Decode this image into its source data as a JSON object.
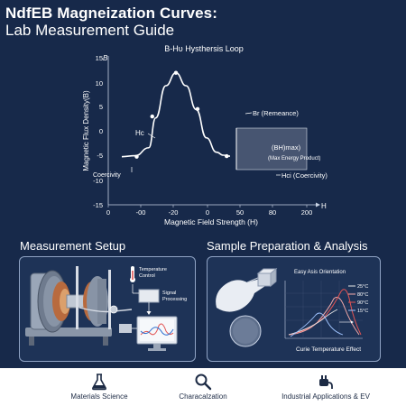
{
  "header": {
    "title_line1": "NdfEB Magneization Curves:",
    "title_line2": "Lab Measurement Guide"
  },
  "chart_data": {
    "type": "line",
    "title": "B-Hυ Hysthersis Loop",
    "xlabel": "Magnetic Field Strength (H)",
    "ylabel": "Magnetic Flux Density(B)",
    "x_axis_letter": "H",
    "y_axis_letter": "B",
    "x_ticks": [
      "0",
      "-00",
      "-20",
      "0",
      "50",
      "80",
      "200"
    ],
    "y_ticks": [
      "15",
      "10",
      "5",
      "0",
      "-5",
      "-10",
      "-15"
    ],
    "series": [
      {
        "x": [
          -80,
          -60,
          -40,
          -30,
          -15,
          0,
          15,
          30,
          45,
          60,
          70,
          80
        ],
        "y": [
          -5.3,
          -5.1,
          -3.5,
          2.5,
          9,
          11.6,
          9,
          4.2,
          -1.5,
          -4.4,
          -5,
          -5.2
        ]
      }
    ],
    "points": [
      {
        "x": -58,
        "y": -5.3
      },
      {
        "x": -35,
        "y": 2.8
      },
      {
        "x": 0,
        "y": 11.6
      },
      {
        "x": 32,
        "y": 4.3
      },
      {
        "x": 75,
        "y": -5.2
      }
    ],
    "annotations": {
      "hc": "Hc",
      "br": "Br (Remeance)",
      "bhmax_line1": "(BH)max)",
      "bhmax_line2": "(Max Energy Product)",
      "hci": "Hci (Coercivity)",
      "coercivity": "Coercivity"
    }
  },
  "setup": {
    "title": "Measurement Setup",
    "temperature_label_1": "Temperature",
    "temperature_label_2": "Control",
    "signal_label_1": "Signal",
    "signal_label_2": "Processing"
  },
  "sample": {
    "title": "Sample Preparation & Analysis",
    "easy_axis": "Easy Asis Orientation",
    "curie_label": "Curie Temperature Effect",
    "temps": [
      "25°C",
      "80°C",
      "90°C",
      "15°C"
    ],
    "temp_colors": [
      "#e8e8e8",
      "#f2a8a8",
      "#e15353",
      "#9fc4ff"
    ]
  },
  "footer": {
    "items": [
      {
        "label": "Materials Science",
        "icon": "flask-icon"
      },
      {
        "label": "Characalzation",
        "icon": "magnifier-icon"
      },
      {
        "label": "Industrial Applications & EV",
        "icon": "ev-plug-icon"
      }
    ]
  }
}
